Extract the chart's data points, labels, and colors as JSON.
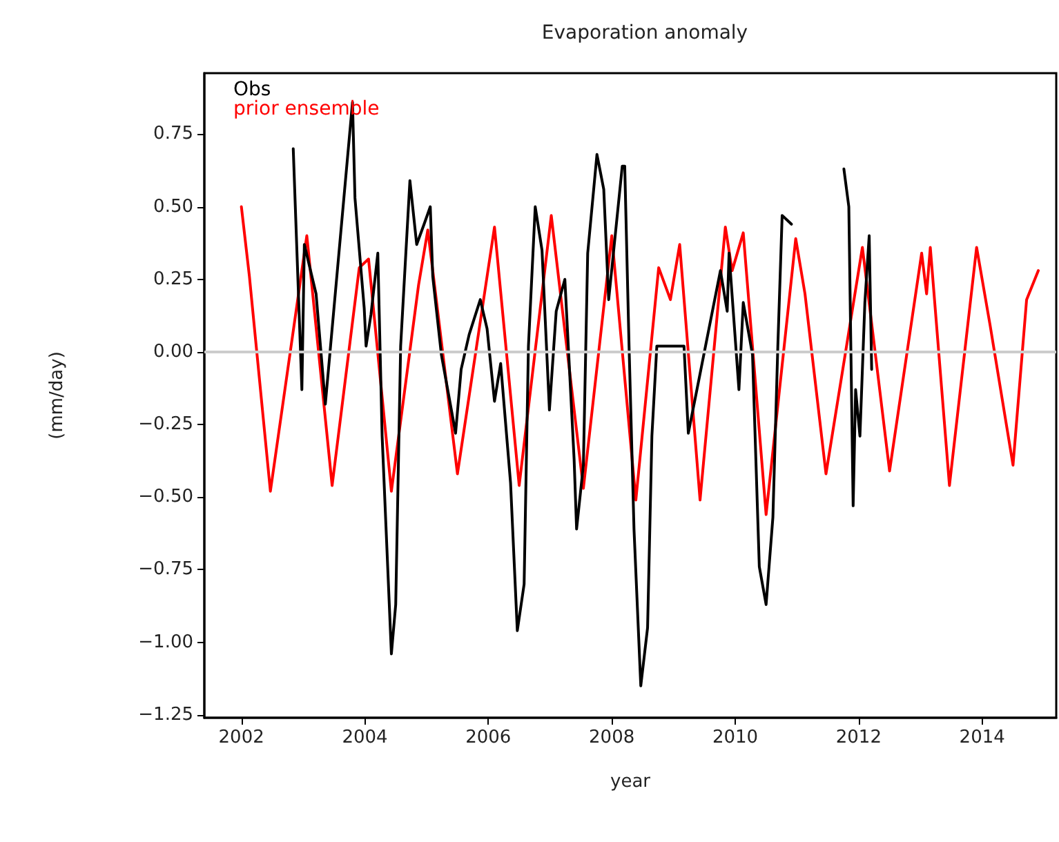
{
  "chart_data": {
    "type": "line",
    "title": "Evaporation anomaly",
    "xlabel": "year",
    "ylabel": "(mm/day)",
    "xlim": [
      2001.4,
      2015.2
    ],
    "ylim": [
      -1.26,
      0.96
    ],
    "xticks": [
      2002,
      2004,
      2006,
      2008,
      2010,
      2012,
      2014
    ],
    "yticks": [
      {
        "value": -1.25,
        "label": "−1.25"
      },
      {
        "value": -1,
        "label": "−1.00"
      },
      {
        "value": -0.75,
        "label": "−0.75"
      },
      {
        "value": -0.5,
        "label": "−0.50"
      },
      {
        "value": -0.25,
        "label": "−0.25"
      },
      {
        "value": 0,
        "label": "0.00"
      },
      {
        "value": 0.25,
        "label": "0.25"
      },
      {
        "value": 0.5,
        "label": "0.50"
      },
      {
        "value": 0.75,
        "label": "0.75"
      }
    ],
    "grid": false,
    "legend": "top left",
    "marker": "none",
    "line_style": "solid",
    "ref_lines": [
      {
        "axis": "y",
        "value": 0,
        "color": "#cccccc"
      }
    ],
    "series": [
      {
        "name": "prior ensemble",
        "color": "#ff0000",
        "x": [
          2002.0,
          2002.13,
          2002.47,
          2003.06,
          2003.47,
          2003.91,
          2004.06,
          2004.43,
          2004.87,
          2005.02,
          2005.5,
          2006.1,
          2006.5,
          2007.02,
          2007.54,
          2008.0,
          2008.39,
          2008.76,
          2008.95,
          2009.1,
          2009.43,
          2009.84,
          2009.95,
          2010.13,
          2010.5,
          2010.98,
          2011.13,
          2011.47,
          2012.06,
          2012.5,
          2013.02,
          2013.1,
          2013.16,
          2013.47,
          2013.91,
          2014.13,
          2014.5,
          2014.72,
          2014.91
        ],
        "values": [
          0.5,
          0.26,
          -0.48,
          0.4,
          -0.46,
          0.29,
          0.32,
          -0.48,
          0.23,
          0.42,
          -0.42,
          0.43,
          -0.46,
          0.47,
          -0.47,
          0.4,
          -0.51,
          0.29,
          0.18,
          0.37,
          -0.51,
          0.43,
          0.28,
          0.41,
          -0.56,
          0.39,
          0.2,
          -0.42,
          0.36,
          -0.41,
          0.34,
          0.2,
          0.36,
          -0.46,
          0.36,
          0.09,
          -0.39,
          0.18,
          0.28
        ]
      },
      {
        "name": "Obs",
        "color": "#000000",
        "x": [
          2002.84,
          2002.98,
          2003.02,
          2003.21,
          2003.36,
          2003.8,
          2003.84,
          2003.99,
          2004.02,
          2004.1,
          2004.21,
          2004.28,
          2004.43,
          2004.5,
          2004.58,
          2004.73,
          2004.84,
          2004.96,
          2005.06,
          2005.1,
          2005.24,
          2005.47,
          2005.56,
          2005.69,
          2005.87,
          2005.98,
          2006.1,
          2006.2,
          2006.36,
          2006.47,
          2006.58,
          2006.65,
          2006.76,
          2006.87,
          2006.99,
          2007.1,
          2007.24,
          2007.39,
          2007.43,
          2007.54,
          2007.61,
          2007.76,
          2007.87,
          2007.95,
          2008.17,
          2008.21,
          2008.28,
          2008.36,
          2008.47,
          2008.58,
          2008.65,
          2008.73,
          2009.17,
          2009.24,
          2009.76,
          2009.87,
          2009.9,
          2010.06,
          2010.13,
          2010.28,
          2010.39,
          2010.5,
          2010.61,
          2010.69,
          2010.76,
          2010.91,
          2011.3,
          2011.76,
          2011.84,
          2011.91,
          2011.95,
          2012.02,
          2012.1,
          2012.17,
          2012.21
        ],
        "values": [
          0.7,
          -0.13,
          0.37,
          0.2,
          -0.18,
          0.86,
          0.53,
          0.15,
          0.02,
          0.13,
          0.34,
          -0.29,
          -1.04,
          -0.87,
          0.02,
          0.59,
          0.37,
          0.44,
          0.5,
          0.26,
          -0.01,
          -0.28,
          -0.06,
          0.06,
          0.18,
          0.08,
          -0.17,
          -0.04,
          -0.45,
          -0.96,
          -0.8,
          0.02,
          0.5,
          0.35,
          -0.2,
          0.14,
          0.25,
          -0.37,
          -0.61,
          -0.39,
          0.34,
          0.68,
          0.56,
          0.18,
          0.64,
          0.64,
          0.02,
          -0.61,
          -1.15,
          -0.95,
          -0.29,
          0.02,
          0.02,
          -0.28,
          0.28,
          0.14,
          0.34,
          -0.13,
          0.17,
          -0.01,
          -0.74,
          -0.87,
          -0.57,
          0.02,
          0.47,
          0.44,
          null,
          0.63,
          0.5,
          -0.53,
          -0.13,
          -0.29,
          0.17,
          0.4,
          -0.06
        ]
      }
    ]
  }
}
